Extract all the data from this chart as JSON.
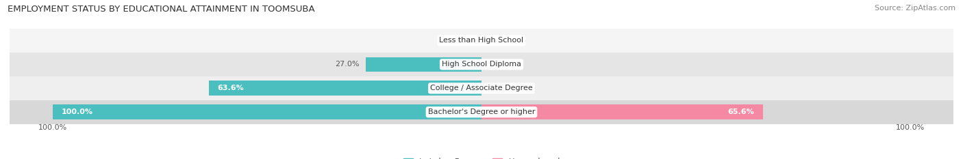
{
  "title": "EMPLOYMENT STATUS BY EDUCATIONAL ATTAINMENT IN TOOMSUBA",
  "source": "Source: ZipAtlas.com",
  "categories": [
    "Bachelor's Degree or higher",
    "College / Associate Degree",
    "High School Diploma",
    "Less than High School"
  ],
  "labor_force_values": [
    100.0,
    63.6,
    27.0,
    0.0
  ],
  "unemployed_values": [
    65.6,
    0.0,
    0.0,
    0.0
  ],
  "labor_force_color": "#4bbfbf",
  "unemployed_color": "#f589a3",
  "row_bg_colors": [
    "#d8d8d8",
    "#efefef",
    "#e5e5e5",
    "#f5f5f5"
  ],
  "title_fontsize": 9.5,
  "source_fontsize": 8,
  "label_fontsize": 8,
  "tick_fontsize": 8,
  "legend_fontsize": 8.5,
  "max_value": 100.0,
  "bar_height": 0.62
}
